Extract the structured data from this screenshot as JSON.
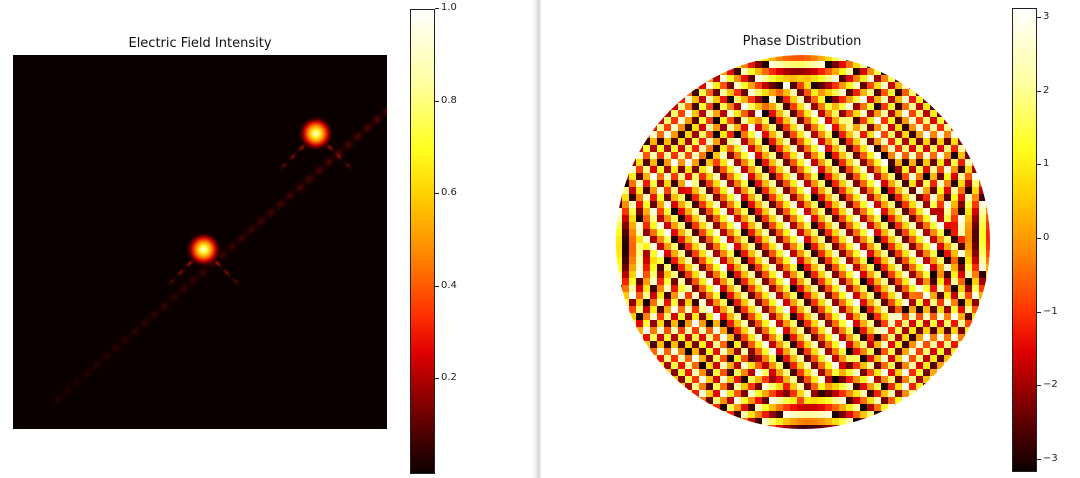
{
  "chart_data": [
    {
      "type": "heatmap",
      "title": "Electric Field Intensity",
      "xlabel": "",
      "ylabel": "",
      "axes": "off",
      "grid": false,
      "colormap": "hot",
      "colorbar": {
        "range": [
          0.0,
          1.0
        ],
        "tick_values": [
          0.2,
          0.4,
          0.6,
          0.8,
          1.0
        ],
        "tick_labels": [
          "0.2",
          "0.4",
          "0.6",
          "0.8",
          "1.0"
        ],
        "placement": "right"
      },
      "features": [
        {
          "kind": "bright-spot",
          "x": 0.81,
          "y": 0.79,
          "intensity": 1.0
        },
        {
          "kind": "bright-spot",
          "x": 0.51,
          "y": 0.48,
          "intensity": 1.0
        },
        {
          "kind": "diagonal-fringe",
          "from_x": 0.12,
          "from_y": 0.08,
          "to_x": 1.0,
          "to_y": 0.85,
          "intensity": 0.12
        }
      ]
    },
    {
      "type": "heatmap",
      "title": "Phase Distribution",
      "xlabel": "",
      "ylabel": "",
      "axes": "off",
      "grid": false,
      "colormap": "hot",
      "mask": "circle",
      "colorbar": {
        "range": [
          -3.14159,
          3.14159
        ],
        "tick_values": [
          -3,
          -2,
          -1,
          0,
          1,
          2,
          3
        ],
        "tick_labels": [
          "−3",
          "−2",
          "−1",
          "0",
          "1",
          "2",
          "3"
        ],
        "placement": "right"
      }
    }
  ],
  "colors": {
    "hot_black": "#0b0000",
    "hot_red": "#e00000",
    "hot_orange": "#ff8c00",
    "hot_yellow": "#ffff20",
    "hot_white": "#ffffff"
  }
}
